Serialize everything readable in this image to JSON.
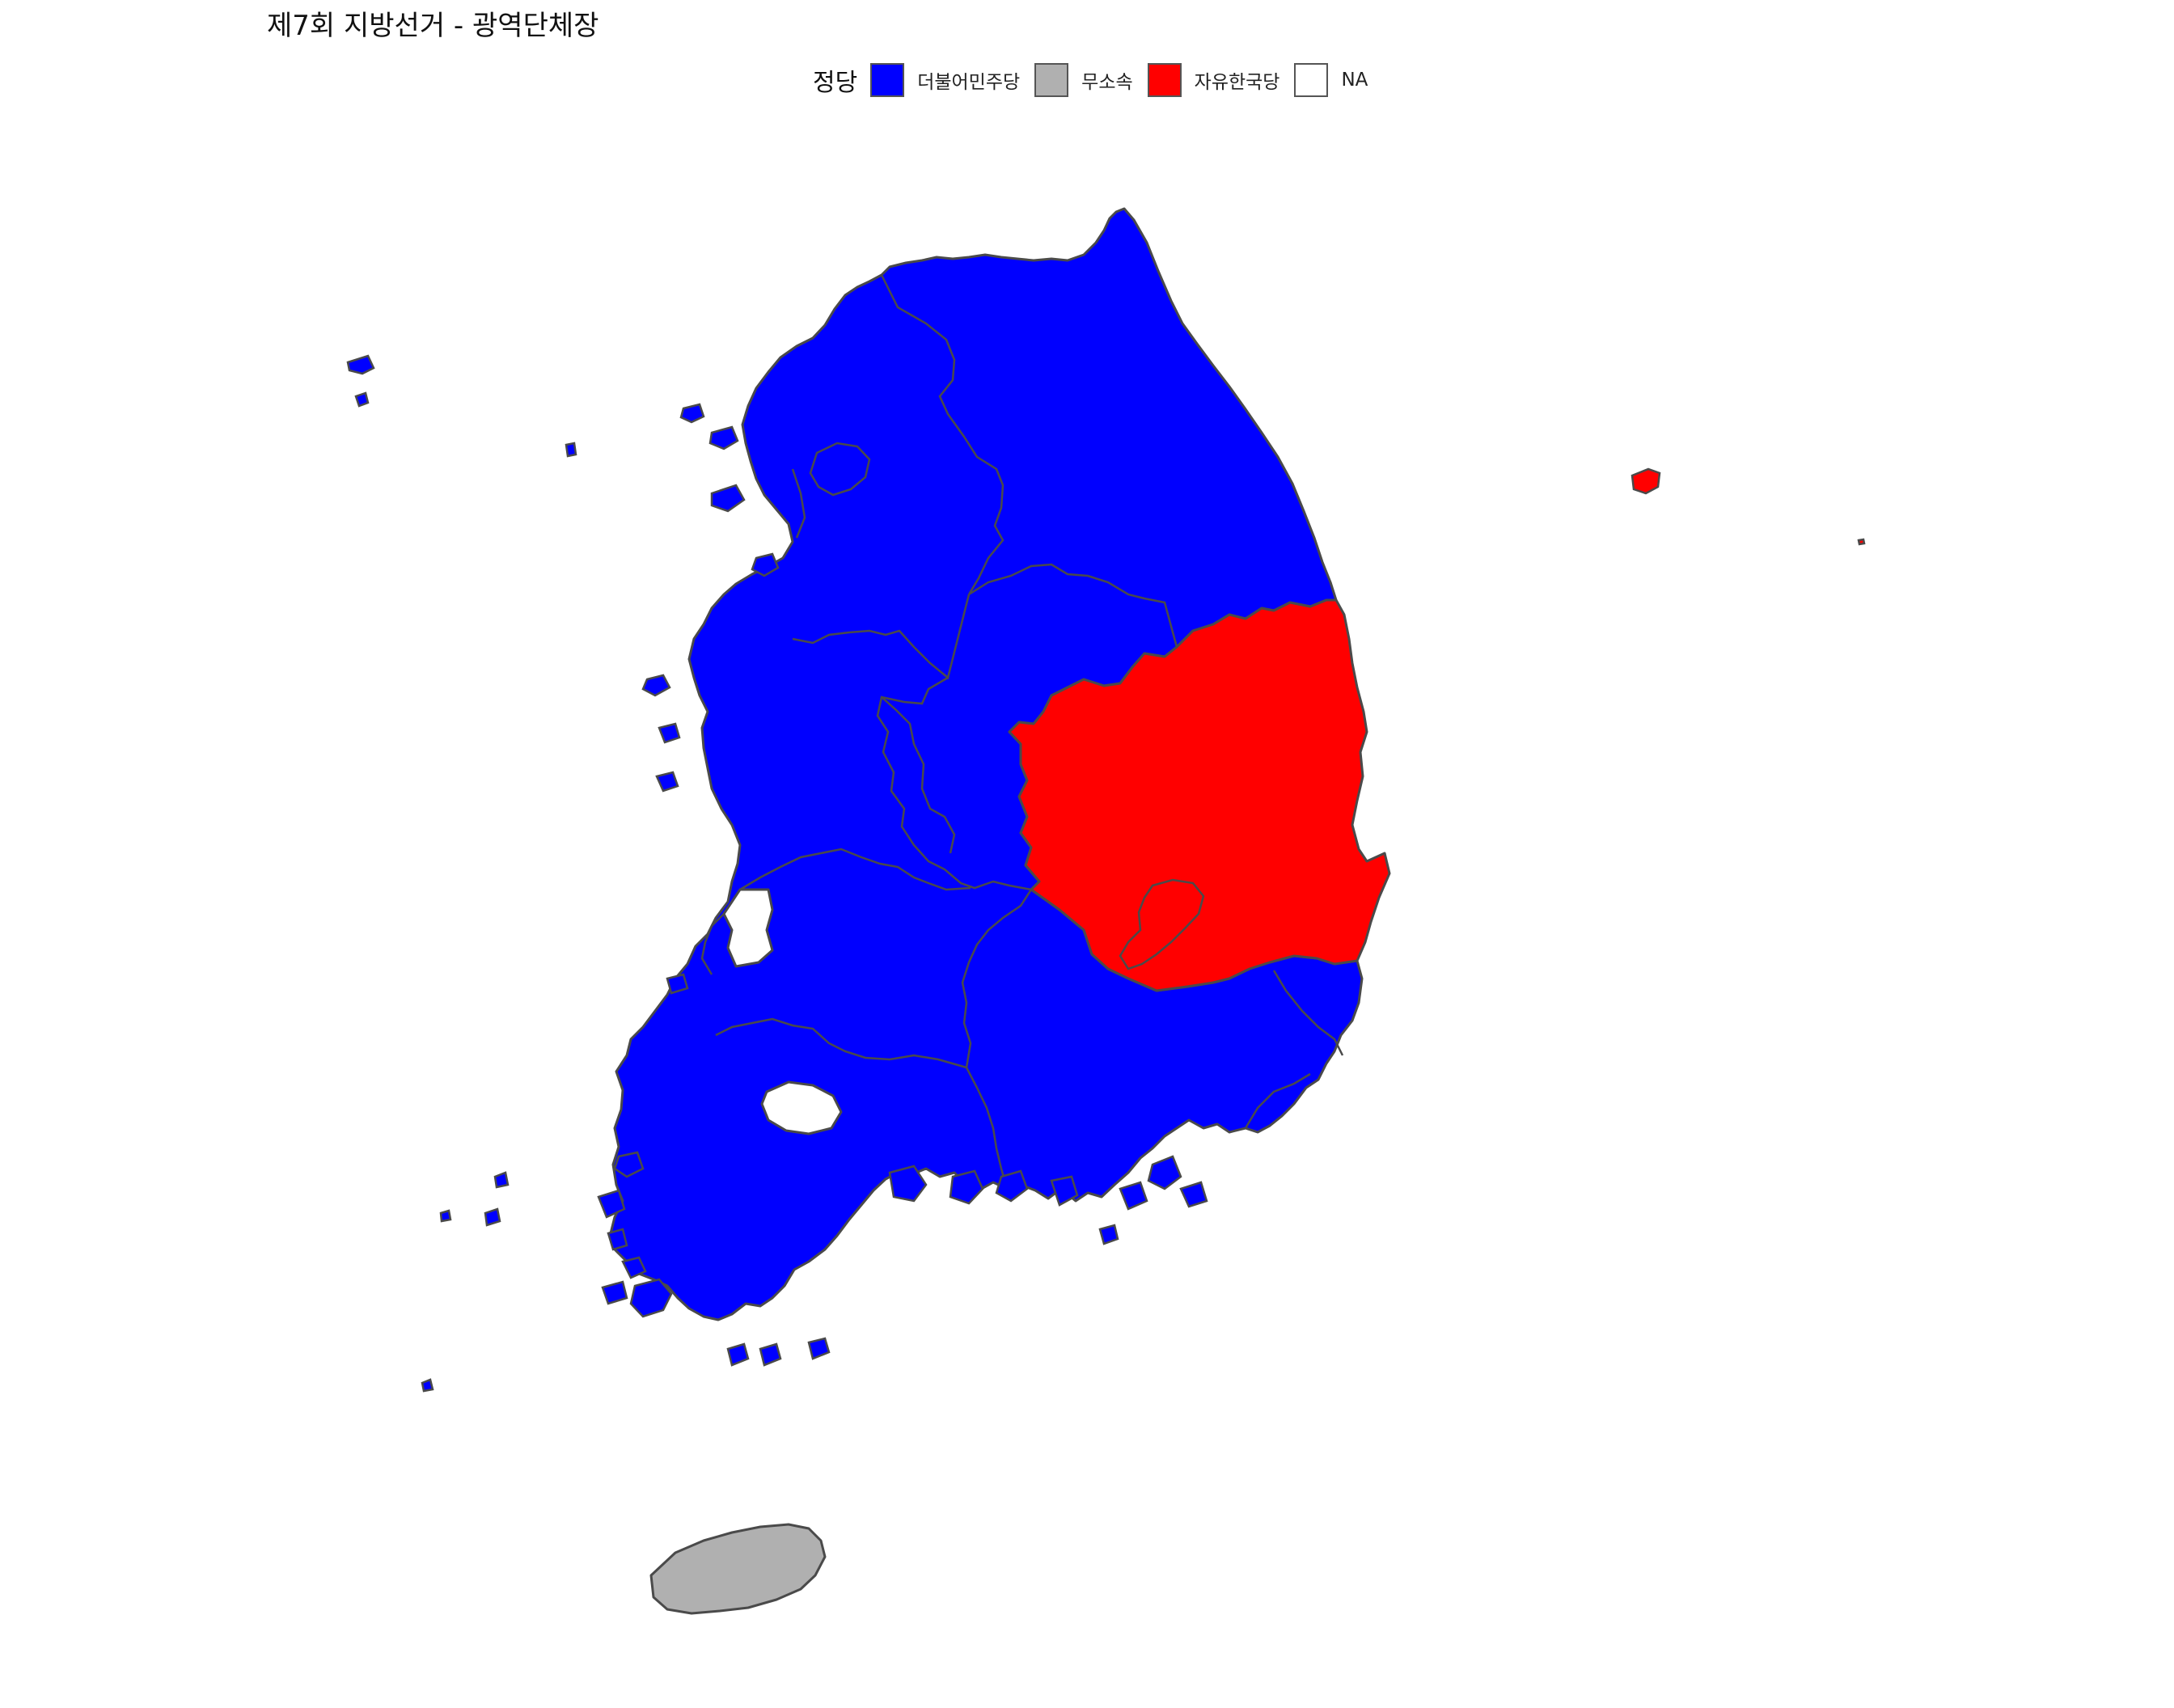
{
  "title": "제7회 지방선거 - 광역단체장",
  "legend": {
    "title": "정당",
    "items": [
      {
        "label": "더불어민주당",
        "color": "#0000FF"
      },
      {
        "label": "무소속",
        "color": "#B0B0B0"
      },
      {
        "label": "자유한국당",
        "color": "#FF0000"
      },
      {
        "label": "NA",
        "color": "#FFFFFF"
      }
    ]
  },
  "map_colors": {
    "stroke": "#4a4a4a",
    "더불어민주당": "#0000FF",
    "무소속": "#B0B0B0",
    "자유한국당": "#FF0000",
    "NA": "#FFFFFF"
  }
}
